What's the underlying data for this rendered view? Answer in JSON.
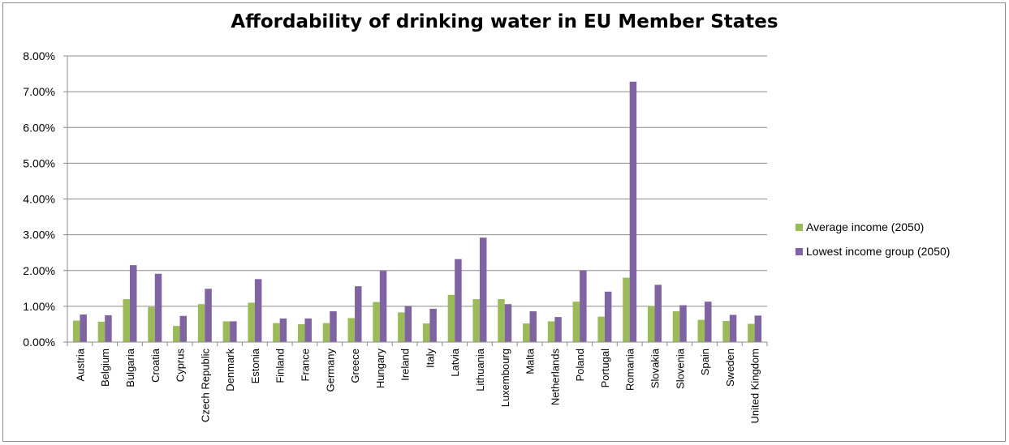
{
  "chart_data": {
    "type": "bar",
    "title": "Affordability of drinking water in EU Member States",
    "xlabel": "",
    "ylabel": "",
    "ylim": [
      0,
      0.08
    ],
    "yticks": [
      "0.00%",
      "1.00%",
      "2.00%",
      "3.00%",
      "4.00%",
      "5.00%",
      "6.00%",
      "7.00%",
      "8.00%"
    ],
    "grid": true,
    "legend": "right",
    "categories": [
      "Austria",
      "Belgium",
      "Bulgaria",
      "Croatia",
      "Cyprus",
      "Czech Republic",
      "Denmark",
      "Estonia",
      "Finland",
      "France",
      "Germany",
      "Greece",
      "Hungary",
      "Ireland",
      "Italy",
      "Latvia",
      "Lithuania",
      "Luxembourg",
      "Malta",
      "Netherlands",
      "Poland",
      "Portugal",
      "Romania",
      "Slovakia",
      "Slovenia",
      "Spain",
      "Sweden",
      "United Kingdom"
    ],
    "series": [
      {
        "name": "Average income (2050)",
        "color": "#9bbb59",
        "values": [
          0.006,
          0.0057,
          0.012,
          0.0098,
          0.0045,
          0.0106,
          0.0058,
          0.011,
          0.0053,
          0.005,
          0.0053,
          0.0067,
          0.0112,
          0.0083,
          0.0052,
          0.0132,
          0.012,
          0.012,
          0.0052,
          0.0058,
          0.0113,
          0.0071,
          0.018,
          0.0101,
          0.0086,
          0.0062,
          0.0059,
          0.0051
        ]
      },
      {
        "name": "Lowest income group (2050)",
        "color": "#8064a2",
        "values": [
          0.0077,
          0.0075,
          0.0215,
          0.0191,
          0.0073,
          0.0149,
          0.0058,
          0.0176,
          0.0066,
          0.0066,
          0.0086,
          0.0156,
          0.0199,
          0.0101,
          0.0093,
          0.0232,
          0.0292,
          0.0106,
          0.0086,
          0.007,
          0.02,
          0.0141,
          0.0728,
          0.016,
          0.0103,
          0.0113,
          0.0076,
          0.0074
        ]
      }
    ]
  }
}
